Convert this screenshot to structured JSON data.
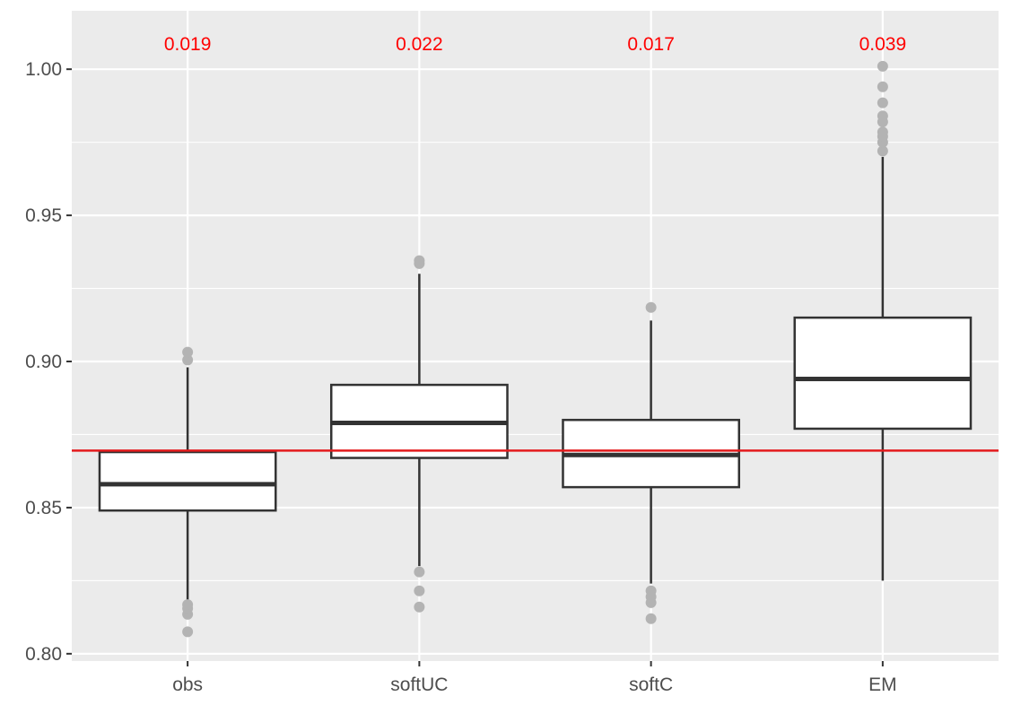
{
  "chart_data": {
    "type": "box",
    "title": "",
    "xlabel": "",
    "ylabel": "",
    "categories": [
      "obs",
      "softUC",
      "softC",
      "EM"
    ],
    "ylim": [
      0.7975,
      1.02
    ],
    "yticks": [
      0.8,
      0.85,
      0.9,
      0.95,
      1.0
    ],
    "ytick_labels": [
      "0.80",
      "0.85",
      "0.90",
      "0.95",
      "1.00"
    ],
    "grid": true,
    "reference_line": {
      "value": 0.8695,
      "color": "#e41a1c"
    },
    "boxes": [
      {
        "category": "obs",
        "lower_whisker": 0.818,
        "q1": 0.849,
        "median": 0.858,
        "q3": 0.869,
        "upper_whisker": 0.898,
        "outliers": [
          0.8075,
          0.8135,
          0.8155,
          0.8168,
          0.9005,
          0.9032
        ]
      },
      {
        "category": "softUC",
        "lower_whisker": 0.83,
        "q1": 0.867,
        "median": 0.879,
        "q3": 0.892,
        "upper_whisker": 0.93,
        "outliers": [
          0.816,
          0.8215,
          0.828,
          0.9335,
          0.9345
        ]
      },
      {
        "category": "softC",
        "lower_whisker": 0.824,
        "q1": 0.857,
        "median": 0.868,
        "q3": 0.88,
        "upper_whisker": 0.914,
        "outliers": [
          0.812,
          0.8175,
          0.8195,
          0.8215,
          0.9185
        ]
      },
      {
        "category": "EM",
        "lower_whisker": 0.825,
        "q1": 0.877,
        "median": 0.894,
        "q3": 0.915,
        "upper_whisker": 0.97,
        "outliers": [
          0.972,
          0.975,
          0.977,
          0.9785,
          0.982,
          0.984,
          0.9885,
          0.994,
          1.001
        ]
      }
    ],
    "annotations": [
      {
        "category": "obs",
        "text": "0.019"
      },
      {
        "category": "softUC",
        "text": "0.022"
      },
      {
        "category": "softC",
        "text": "0.017"
      },
      {
        "category": "EM",
        "text": "0.039"
      }
    ],
    "colors": {
      "panel": "#ebebeb",
      "grid": "#ffffff",
      "box_fill": "#ffffff",
      "box_stroke": "#333333",
      "outlier": "#b3b3b3",
      "annotation": "#ff0000",
      "tick_text": "#4d4d4d"
    }
  }
}
